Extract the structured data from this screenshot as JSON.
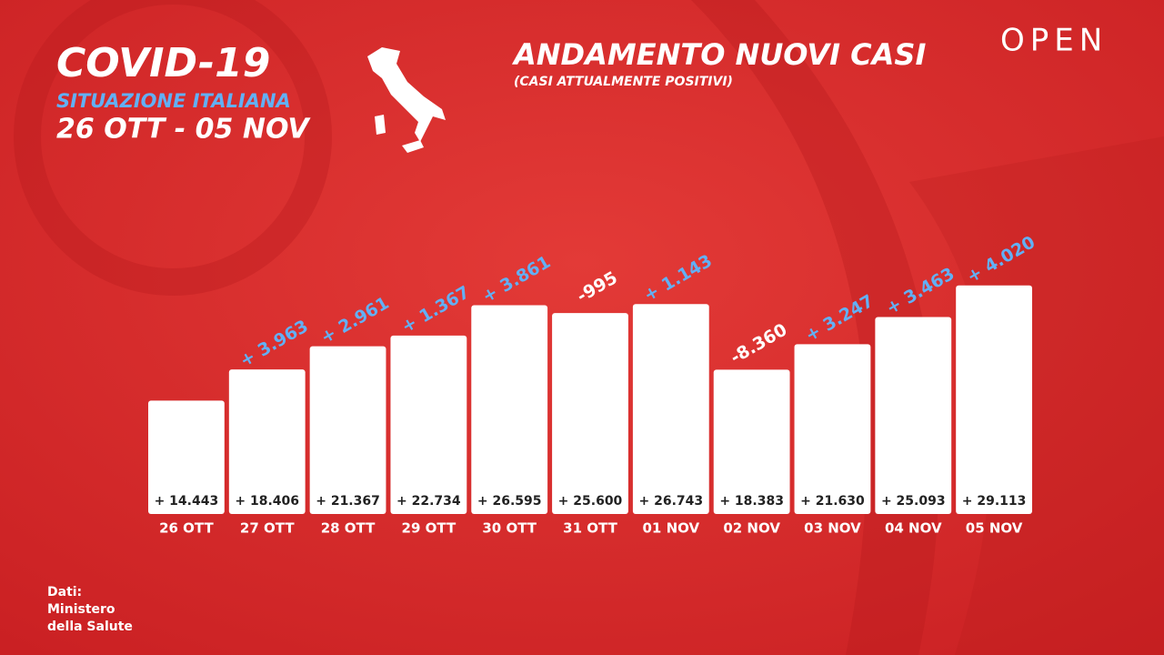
{
  "chart_data": {
    "type": "bar",
    "title": "ANDAMENTO NUOVI CASI",
    "subtitle": "(CASI ATTUALMENTE POSITIVI)",
    "header": {
      "title": "COVID-19",
      "subtitle": "SITUAZIONE ITALIANA",
      "period": "26 OTT - 05 NOV"
    },
    "brand": "OPEN",
    "source": [
      "Dati:",
      "Ministero",
      "della Salute"
    ],
    "categories": [
      "26 OTT",
      "27 OTT",
      "28 OTT",
      "29 OTT",
      "30 OTT",
      "31 OTT",
      "01 NOV",
      "02 NOV",
      "03 NOV",
      "04 NOV",
      "05 NOV"
    ],
    "values": [
      14443,
      18406,
      21367,
      22734,
      26595,
      25600,
      26743,
      18383,
      21630,
      25093,
      29113
    ],
    "value_labels": [
      "+ 14.443",
      "+ 18.406",
      "+ 21.367",
      "+ 22.734",
      "+ 26.595",
      "+ 25.600",
      "+ 26.743",
      "+ 18.383",
      "+ 21.630",
      "+ 25.093",
      "+ 29.113"
    ],
    "changes": {
      "values": [
        null,
        3963,
        2961,
        1367,
        3861,
        -995,
        1143,
        -8360,
        3247,
        3463,
        4020
      ],
      "value_labels": [
        null,
        "+ 3.963",
        "+ 2.961",
        "+ 1.367",
        "+ 3.861",
        "-995",
        "+ 1.143",
        "-8.360",
        "+ 3.247",
        "+ 3.463",
        "+ 4.020"
      ],
      "positive_color": "#62b0f5",
      "negative_color": "#ffffff"
    },
    "color": "#ffffff",
    "ylim": [
      0,
      35000
    ]
  }
}
